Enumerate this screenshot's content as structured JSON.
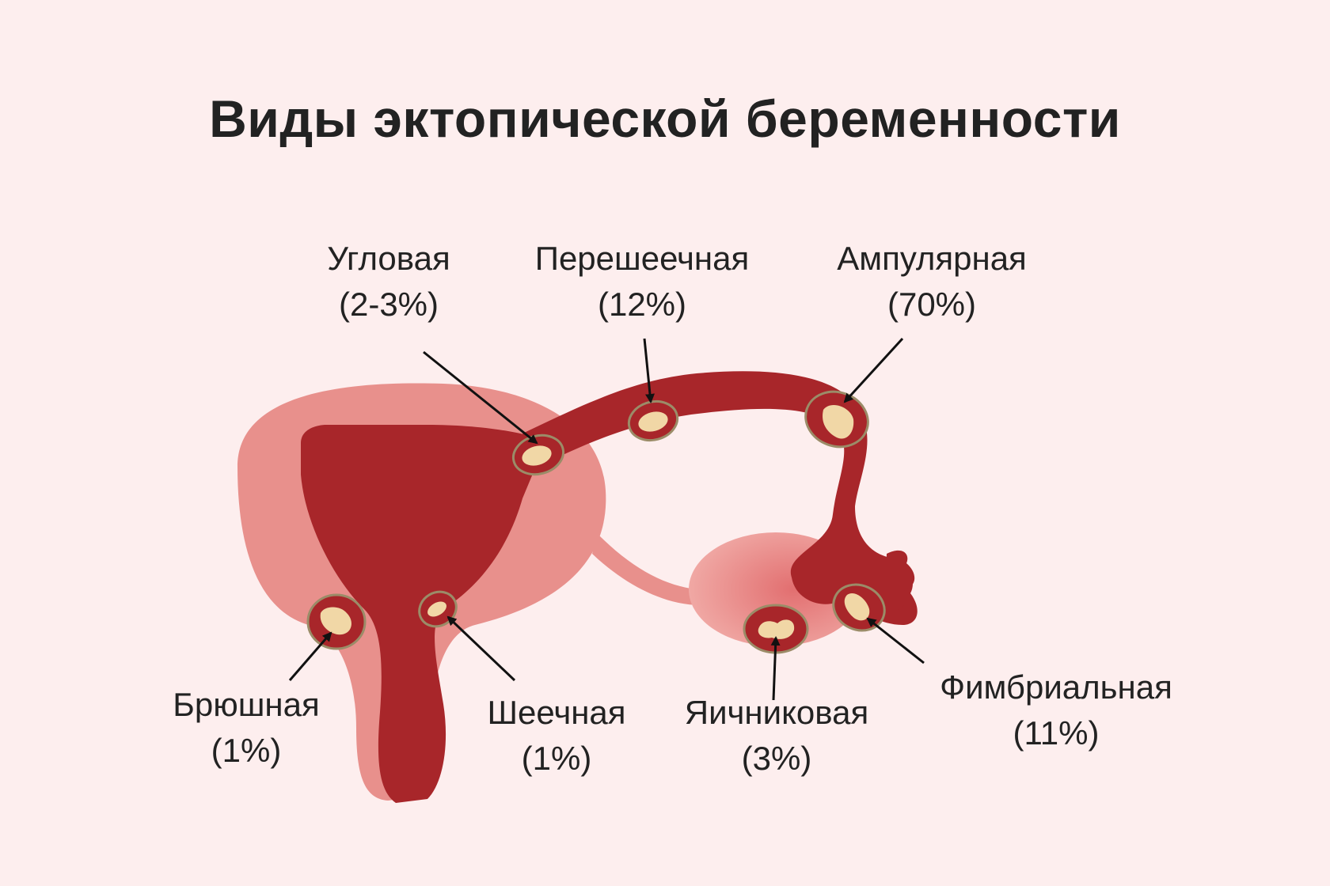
{
  "title": "Виды эктопической беременности",
  "colors": {
    "background": "#fdeeee",
    "uterus_outer": "#e8908c",
    "uterus_inner": "#a8262a",
    "tube": "#a8262a",
    "ovary": "#ee9c98",
    "embryo": "#f1d7a6",
    "ring": "#8a7a5a"
  },
  "labels": {
    "angular": {
      "name": "Угловая",
      "pct": "(2-3%)"
    },
    "isthmic": {
      "name": "Перешеечная",
      "pct": "(12%)"
    },
    "ampullary": {
      "name": "Ампулярная",
      "pct": "(70%)"
    },
    "abdominal": {
      "name": "Брюшная",
      "pct": "(1%)"
    },
    "cervical": {
      "name": "Шеечная",
      "pct": "(1%)"
    },
    "ovarian": {
      "name": "Яичниковая",
      "pct": "(3%)"
    },
    "fimbrial": {
      "name": "Фимбриальная",
      "pct": "(11%)"
    }
  }
}
